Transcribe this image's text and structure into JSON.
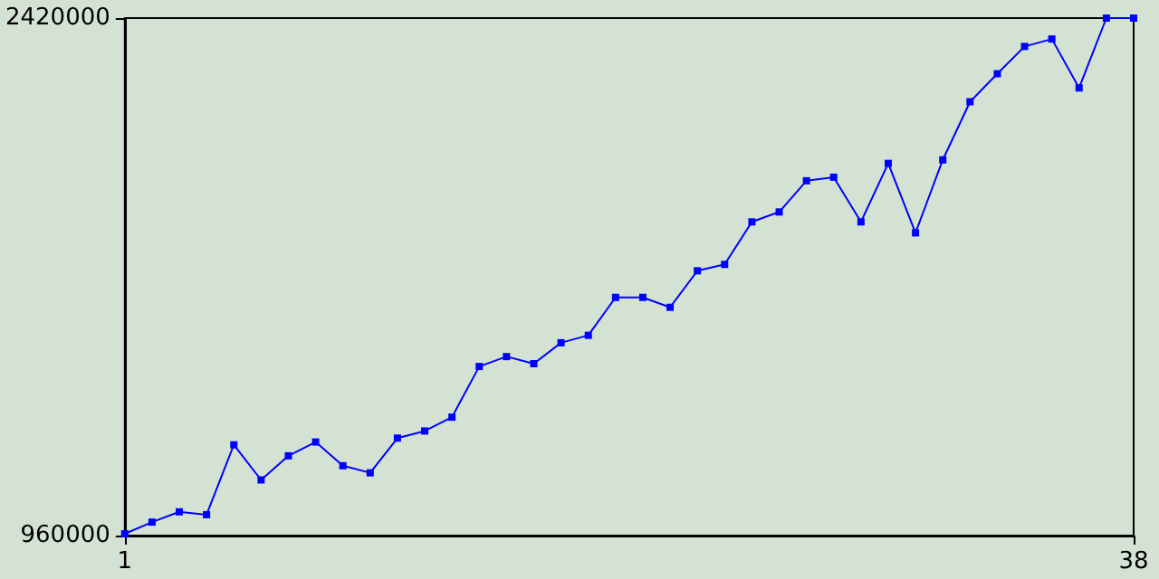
{
  "chart_data": {
    "type": "line",
    "x": [
      1,
      2,
      3,
      4,
      5,
      6,
      7,
      8,
      9,
      10,
      11,
      12,
      13,
      14,
      15,
      16,
      17,
      18,
      19,
      20,
      21,
      22,
      23,
      24,
      25,
      26,
      27,
      28,
      29,
      30,
      31,
      32,
      33,
      34,
      35,
      36,
      37,
      38
    ],
    "series": [
      {
        "color": "#0000ff",
        "values": [
          965000,
          998000,
          1027000,
          1019000,
          1216000,
          1117000,
          1185000,
          1224000,
          1157000,
          1137000,
          1235000,
          1255000,
          1294000,
          1437000,
          1465000,
          1445000,
          1504000,
          1525000,
          1632000,
          1632000,
          1604000,
          1707000,
          1725000,
          1845000,
          1873000,
          1961000,
          1971000,
          1845000,
          2010000,
          1814000,
          2020000,
          2184000,
          2263000,
          2340000,
          2361000,
          2223000,
          2420000,
          2420000
        ]
      }
    ],
    "xlim": [
      1,
      38
    ],
    "xticks": [
      1,
      38
    ],
    "ylim": [
      960000,
      2420000
    ],
    "yticks": [
      960000,
      2420000
    ],
    "grid": false,
    "marker": "square",
    "line_style": "solid"
  }
}
